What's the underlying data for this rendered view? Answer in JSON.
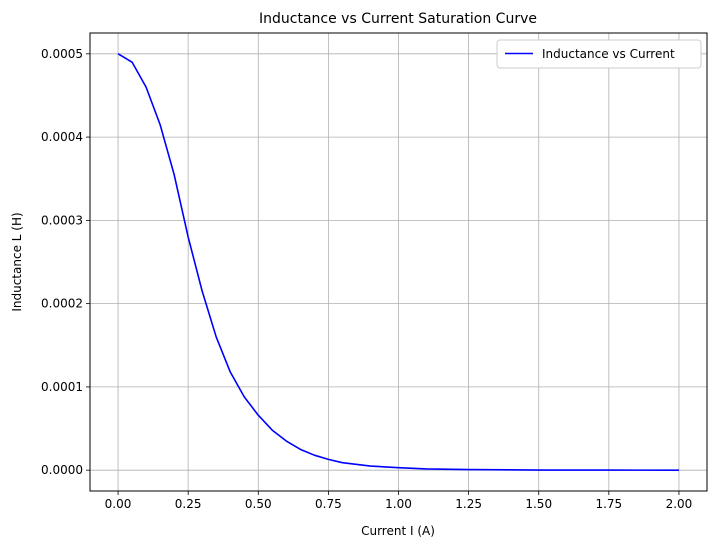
{
  "chart_data": {
    "type": "line",
    "title": "Inductance vs Current Saturation Curve",
    "xlabel": "Current I (A)",
    "ylabel": "Inductance L (H)",
    "xlim": [
      -0.1,
      2.1
    ],
    "ylim": [
      -2.5e-05,
      0.000525
    ],
    "x_ticks": [
      0.0,
      0.25,
      0.5,
      0.75,
      1.0,
      1.25,
      1.5,
      1.75,
      2.0
    ],
    "x_tick_labels": [
      "0.00",
      "0.25",
      "0.50",
      "0.75",
      "1.00",
      "1.25",
      "1.50",
      "1.75",
      "2.00"
    ],
    "y_ticks": [
      0.0,
      0.0001,
      0.0002,
      0.0003,
      0.0004,
      0.0005
    ],
    "y_tick_labels": [
      "0.0000",
      "0.0001",
      "0.0002",
      "0.0003",
      "0.0004",
      "0.0005"
    ],
    "grid": true,
    "legend_position": "top-right",
    "series": [
      {
        "name": "Inductance vs Current",
        "color": "#0000ff",
        "x": [
          0.0,
          0.05,
          0.1,
          0.15,
          0.2,
          0.25,
          0.3,
          0.35,
          0.4,
          0.45,
          0.5,
          0.55,
          0.6,
          0.65,
          0.7,
          0.75,
          0.8,
          0.9,
          1.0,
          1.1,
          1.25,
          1.5,
          1.75,
          2.0
        ],
        "y": [
          0.0005,
          0.00049,
          0.00046,
          0.000415,
          0.000355,
          0.00028,
          0.000215,
          0.00016,
          0.000118,
          8.8e-05,
          6.6e-05,
          4.8e-05,
          3.5e-05,
          2.5e-05,
          1.8e-05,
          1.3e-05,
          9e-06,
          5e-06,
          3e-06,
          1.5e-06,
          7e-07,
          2e-07,
          1e-07,
          0.0
        ]
      }
    ]
  }
}
